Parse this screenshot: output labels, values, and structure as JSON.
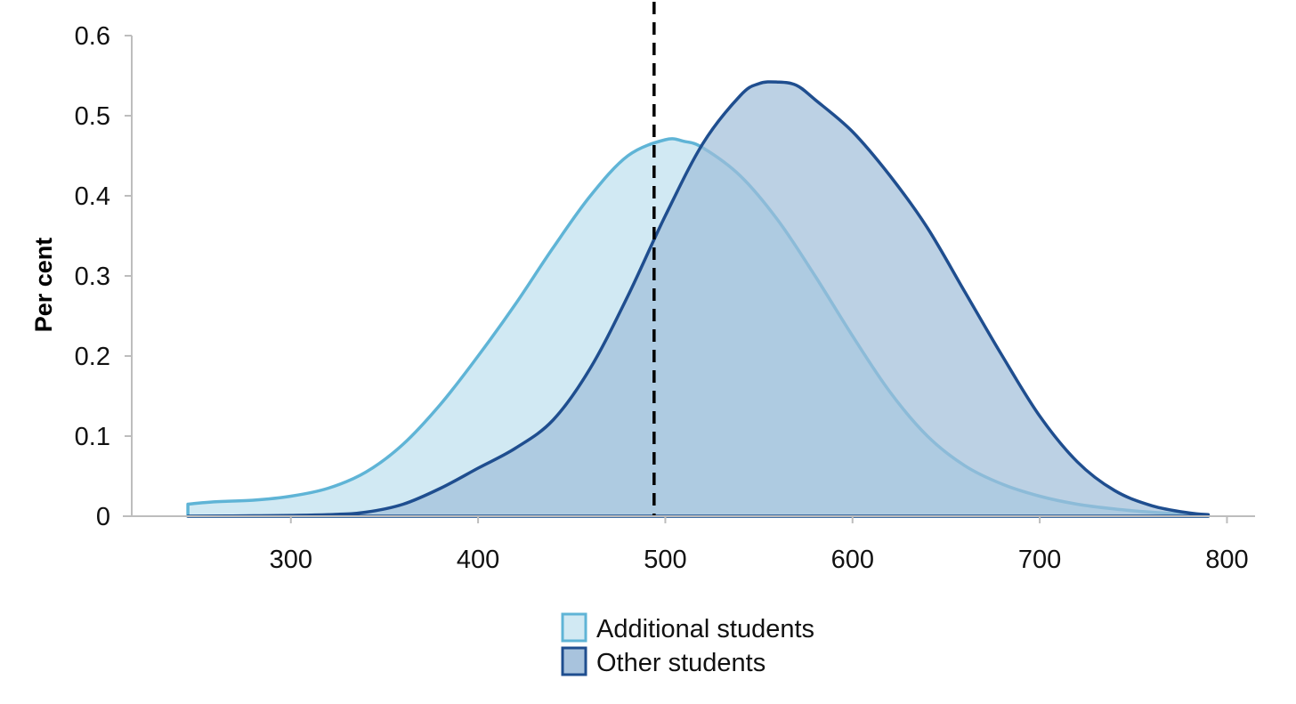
{
  "chart_data": {
    "type": "area",
    "xlabel": "",
    "ylabel": "Per cent",
    "xlim": [
      215,
      815
    ],
    "ylim": [
      0,
      0.6
    ],
    "x_ticks": [
      300,
      400,
      500,
      600,
      700,
      800
    ],
    "y_ticks": [
      0,
      0.1,
      0.2,
      0.3,
      0.4,
      0.5,
      0.6
    ],
    "x_tick_labels": [
      "300",
      "400",
      "500",
      "600",
      "700",
      "800"
    ],
    "y_tick_labels": [
      "0",
      "0.1",
      "0.2",
      "0.3",
      "0.4",
      "0.5",
      "0.6"
    ],
    "grid": false,
    "legend_position": "bottom-center",
    "reference_line": {
      "x": 494,
      "style": "dashed",
      "color": "#000000"
    },
    "series": [
      {
        "name": "Additional students",
        "fill": "#d1e9f3",
        "stroke": "#5fb4d6",
        "x": [
          245,
          260,
          280,
          300,
          320,
          340,
          360,
          380,
          400,
          420,
          440,
          460,
          480,
          500,
          510,
          520,
          540,
          560,
          580,
          600,
          620,
          640,
          660,
          680,
          700,
          720,
          740,
          760,
          780,
          790
        ],
        "y": [
          0.015,
          0.018,
          0.02,
          0.025,
          0.035,
          0.055,
          0.09,
          0.14,
          0.2,
          0.265,
          0.335,
          0.4,
          0.45,
          0.47,
          0.468,
          0.46,
          0.425,
          0.37,
          0.3,
          0.225,
          0.155,
          0.1,
          0.063,
          0.04,
          0.025,
          0.015,
          0.009,
          0.005,
          0.002,
          0.001
        ]
      },
      {
        "name": "Other students",
        "fill": "#9fbdd9",
        "fill_opacity": 0.7,
        "stroke": "#1f4e8f",
        "x": [
          245,
          280,
          320,
          340,
          360,
          380,
          400,
          420,
          440,
          460,
          480,
          500,
          520,
          540,
          550,
          560,
          570,
          580,
          600,
          620,
          640,
          660,
          680,
          700,
          720,
          740,
          760,
          780,
          790
        ],
        "y": [
          0.0,
          0.0005,
          0.002,
          0.005,
          0.015,
          0.035,
          0.06,
          0.085,
          0.12,
          0.185,
          0.275,
          0.375,
          0.465,
          0.525,
          0.54,
          0.542,
          0.538,
          0.52,
          0.48,
          0.425,
          0.36,
          0.28,
          0.2,
          0.125,
          0.068,
          0.032,
          0.013,
          0.004,
          0.002
        ]
      }
    ]
  }
}
